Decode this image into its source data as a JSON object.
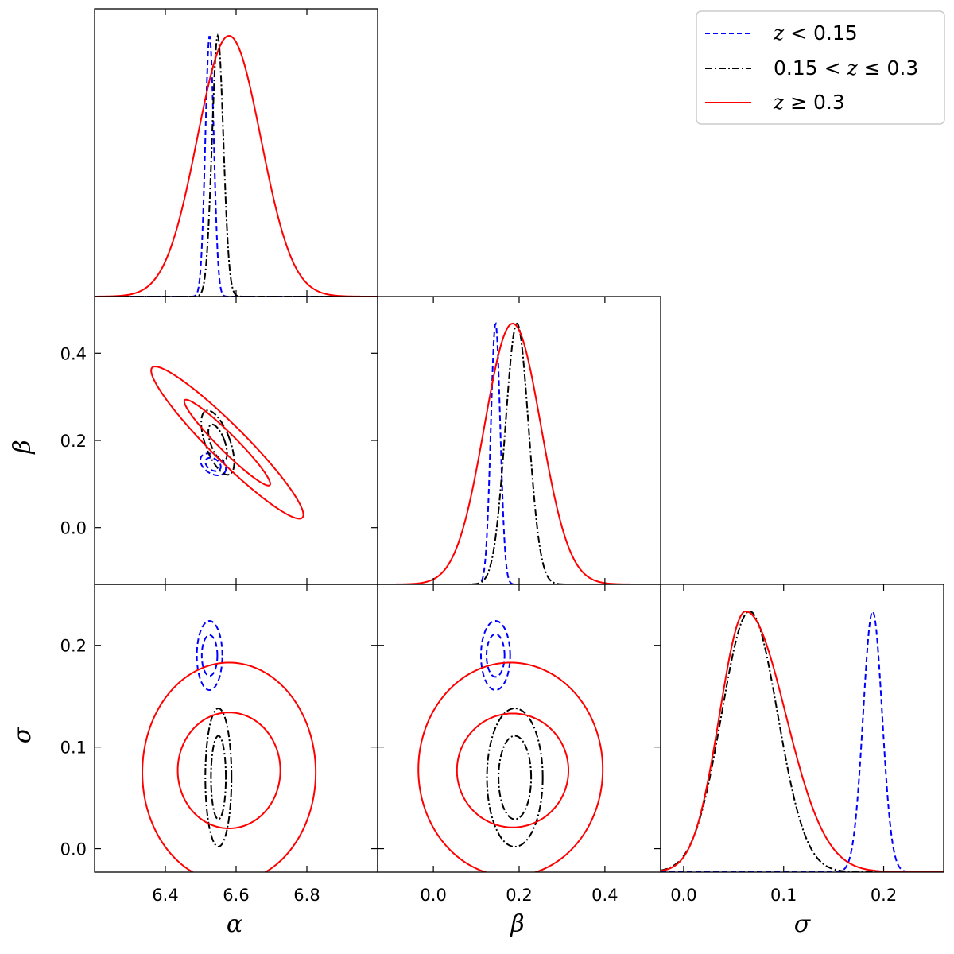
{
  "chart_data": {
    "type": "corner",
    "parameters": [
      {
        "symbol": "α",
        "range": [
          6.2,
          7.0
        ],
        "ticks": [
          "6.4",
          "6.6",
          "6.8"
        ],
        "tick_values": [
          6.4,
          6.6,
          6.8
        ]
      },
      {
        "symbol": "β",
        "range": [
          -0.13,
          0.53
        ],
        "ticks": [
          "0.0",
          "0.2",
          "0.4"
        ],
        "tick_values": [
          0.0,
          0.2,
          0.4
        ]
      },
      {
        "symbol": "σ",
        "range": [
          -0.023,
          0.26
        ],
        "ticks": [
          "0.0",
          "0.1",
          "0.2"
        ],
        "tick_values": [
          0.0,
          0.1,
          0.2
        ]
      }
    ],
    "legend": {
      "placement": "top-right",
      "entries": [
        {
          "prefix": "",
          "math": "z",
          "suffix": " < 0.15"
        },
        {
          "prefix": "0.15 < ",
          "math": "z",
          "suffix": " ≤ 0.3"
        },
        {
          "prefix": "",
          "math": "z",
          "suffix": " ≥ 0.3"
        }
      ]
    },
    "series": [
      {
        "color": "#0000ff",
        "dash": "dashed",
        "legend_index": 0,
        "marginals": [
          {
            "shape": "gauss",
            "mu": 6.525,
            "sigma": 0.012
          },
          {
            "shape": "gauss",
            "mu": 0.145,
            "sigma": 0.011
          },
          {
            "shape": "gauss",
            "mu": 0.189,
            "sigma": 0.0095
          }
        ],
        "contours": {
          "alpha_beta": [
            {
              "cx": 6.535,
              "cy": 0.145,
              "rx": 0.04,
              "ry": 0.021,
              "rot": -0.6
            },
            {
              "cx": 6.535,
              "cy": 0.145,
              "rx": 0.024,
              "ry": 0.013,
              "rot": -0.6
            }
          ],
          "alpha_sigma": [
            {
              "cx": 6.525,
              "cy": 0.19,
              "rx": 0.036,
              "ry": 0.034,
              "rot": 0
            },
            {
              "cx": 6.525,
              "cy": 0.19,
              "rx": 0.022,
              "ry": 0.02,
              "rot": 0
            }
          ],
          "beta_sigma": [
            {
              "cx": 0.145,
              "cy": 0.19,
              "rx": 0.034,
              "ry": 0.034,
              "rot": 0
            },
            {
              "cx": 0.145,
              "cy": 0.19,
              "rx": 0.021,
              "ry": 0.021,
              "rot": 0
            }
          ]
        }
      },
      {
        "color": "#000000",
        "dash": "dashdot",
        "legend_index": 1,
        "marginals": [
          {
            "shape": "gauss",
            "mu": 6.548,
            "sigma": 0.016
          },
          {
            "shape": "gauss",
            "mu": 0.195,
            "sigma": 0.027
          },
          {
            "shape": "gauss",
            "mu": 0.066,
            "sigma": 0.028
          }
        ],
        "contours": {
          "alpha_beta": [
            {
              "cx": 6.548,
              "cy": 0.195,
              "rx": 0.035,
              "ry": 0.078,
              "rot": 0.35
            },
            {
              "cx": 6.548,
              "cy": 0.195,
              "rx": 0.02,
              "ry": 0.044,
              "rot": 0.35
            }
          ],
          "alpha_sigma": [
            {
              "cx": 6.55,
              "cy": 0.07,
              "rx": 0.037,
              "ry": 0.068,
              "rot": 0
            },
            {
              "cx": 6.55,
              "cy": 0.07,
              "rx": 0.021,
              "ry": 0.041,
              "rot": 0
            }
          ],
          "beta_sigma": [
            {
              "cx": 0.19,
              "cy": 0.07,
              "rx": 0.065,
              "ry": 0.068,
              "rot": 0
            },
            {
              "cx": 0.19,
              "cy": 0.07,
              "rx": 0.038,
              "ry": 0.041,
              "rot": 0
            }
          ]
        }
      },
      {
        "color": "#ff0000",
        "dash": "solid",
        "legend_index": 2,
        "marginals": [
          {
            "shape": "gauss",
            "mu": 6.58,
            "sigma": 0.09
          },
          {
            "shape": "gauss",
            "mu": 0.185,
            "sigma": 0.066
          },
          {
            "shape": "skew",
            "mu": 0.062,
            "sigma_left": 0.026,
            "sigma_right": 0.04
          }
        ],
        "contours": {
          "alpha_beta": [
            {
              "cx": 6.575,
              "cy": 0.195,
              "rx": 0.3,
              "ry": 0.04,
              "rot": -0.785
            },
            {
              "cx": 6.575,
              "cy": 0.195,
              "rx": 0.17,
              "ry": 0.02,
              "rot": -0.785
            }
          ],
          "alpha_sigma": [
            {
              "cx": 6.58,
              "cy": 0.075,
              "rx": 0.245,
              "ry": 0.108,
              "rot": 0
            },
            {
              "cx": 6.58,
              "cy": 0.077,
              "rx": 0.145,
              "ry": 0.057,
              "rot": 0
            }
          ],
          "beta_sigma": [
            {
              "cx": 0.18,
              "cy": 0.078,
              "rx": 0.215,
              "ry": 0.105,
              "rot": 0
            },
            {
              "cx": 0.185,
              "cy": 0.077,
              "rx": 0.13,
              "ry": 0.056,
              "rot": 0
            }
          ]
        }
      }
    ]
  }
}
